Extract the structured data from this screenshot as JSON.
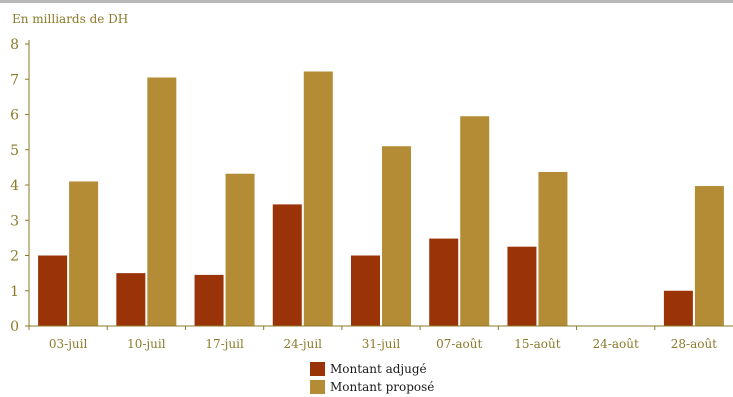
{
  "chart_data": {
    "type": "bar",
    "unit_label": "En milliards de DH",
    "categories": [
      "03-juil",
      "10-juil",
      "17-juil",
      "24-juil",
      "31-juil",
      "07-août",
      "15-août",
      "24-août",
      "28-août"
    ],
    "series": [
      {
        "name": "Montant adjugé",
        "color": "#9a3308",
        "values": [
          2.0,
          1.5,
          1.45,
          3.45,
          2.0,
          2.48,
          2.25,
          0,
          1.0
        ]
      },
      {
        "name": "Montant proposé",
        "color": "#b38c35",
        "values": [
          4.1,
          7.05,
          4.32,
          7.22,
          5.1,
          5.95,
          4.37,
          0,
          3.97
        ]
      }
    ],
    "yticks": [
      0,
      1,
      2,
      3,
      4,
      5,
      6,
      7,
      8
    ],
    "ylim": [
      0,
      8
    ],
    "axis_color": "#8b7a2a",
    "grid": false,
    "legend_position": "bottom"
  }
}
